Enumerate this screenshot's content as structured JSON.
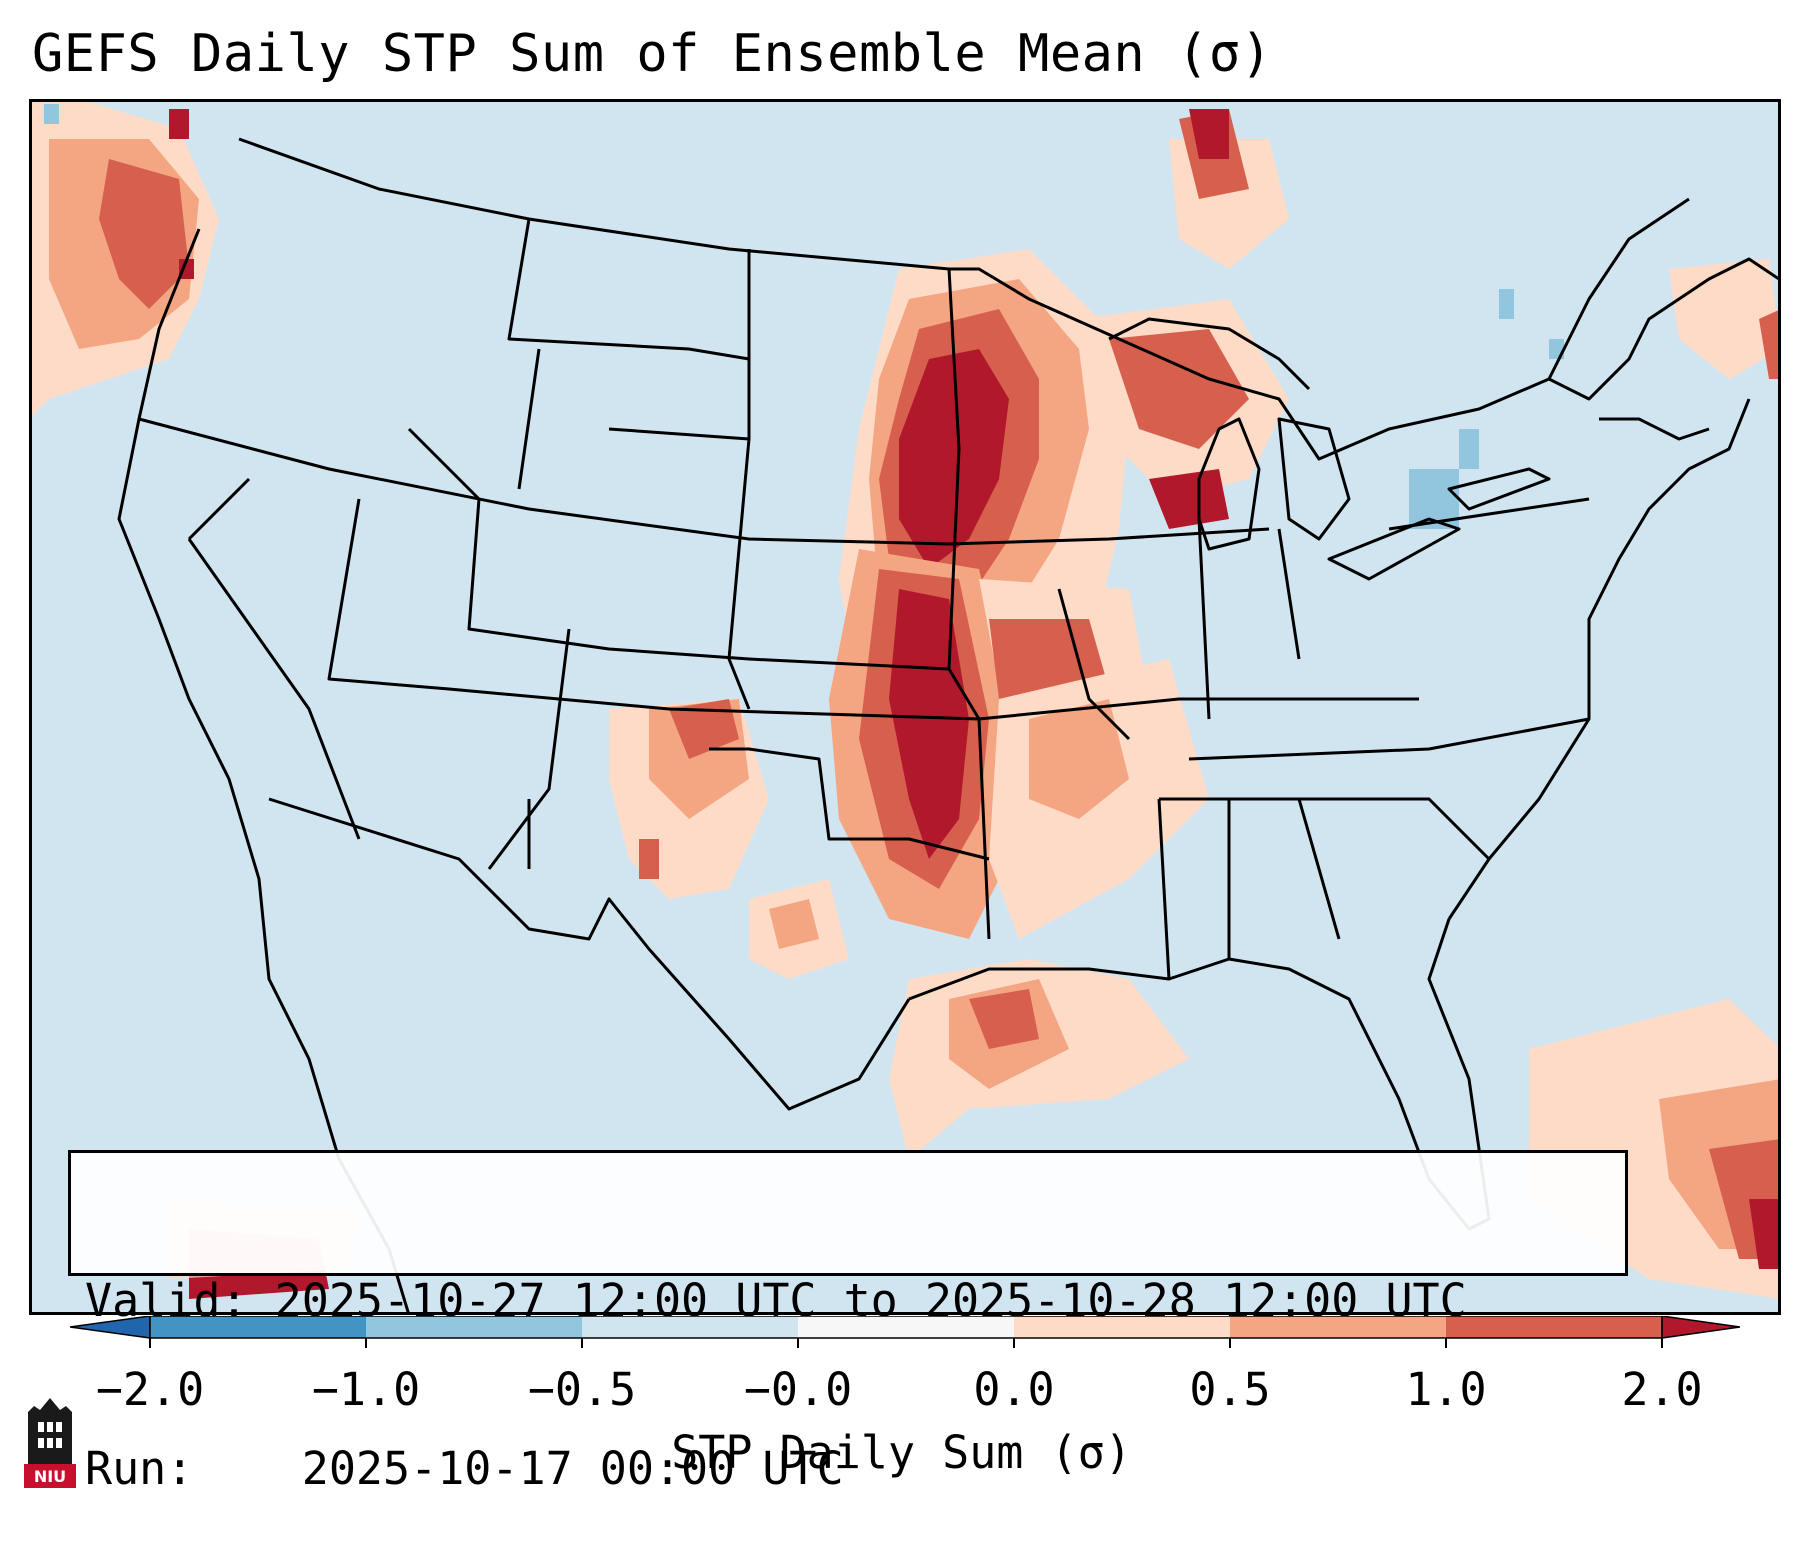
{
  "title": "GEFS Daily STP Sum of Ensemble Mean (σ)",
  "info": {
    "valid_label": "Valid:",
    "valid_value": "2025-10-27 12:00 UTC to 2025-10-28 12:00 UTC",
    "run_label": "Run:",
    "run_value": "2025-10-17 00:00 UTC"
  },
  "colorbar": {
    "label": "STP Daily Sum (σ)",
    "ticks": [
      "−2.0",
      "−1.0",
      "−0.5",
      "−0.0",
      "0.0",
      "0.5",
      "1.0",
      "2.0"
    ],
    "colors": {
      "below_min": "#2166ac",
      "n2_n1": "#4393c3",
      "n1_n05": "#92c5de",
      "n05_0": "#d1e5f0",
      "zero": "#f7f7f7",
      "p0_05": "#fddbc7",
      "p05_1": "#f4a582",
      "p1_2": "#d6604d",
      "above_max": "#b2182b"
    },
    "extend": "both"
  },
  "map": {
    "background_color": "#d1e5f0",
    "region": "Contiguous United States",
    "projection": "Lambert conformal"
  },
  "logo": {
    "text": "NIU"
  }
}
